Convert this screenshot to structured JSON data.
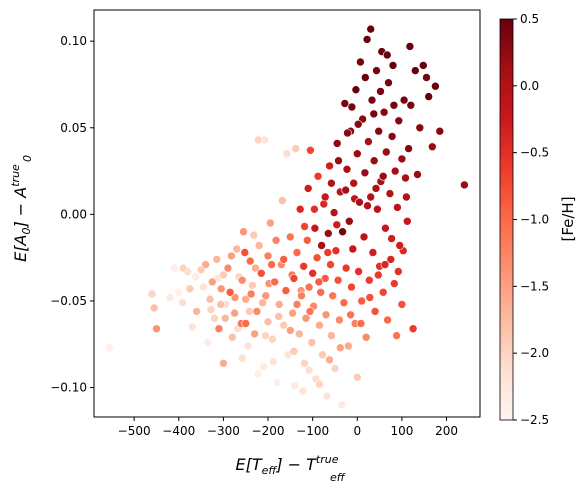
{
  "chart_data": {
    "type": "scatter",
    "xlabel_base": "E[T",
    "xlabel_sub": "eff",
    "xlabel_mid": "] − T",
    "xlabel_sup": "true",
    "ylabel_base": "E[A",
    "ylabel_sub": "0",
    "ylabel_mid": "] − A",
    "ylabel_sup": "true",
    "xlim": [
      -590,
      275
    ],
    "ylim": [
      -0.117,
      0.118
    ],
    "xticks": [
      -500,
      -400,
      -300,
      -200,
      -100,
      0,
      100,
      200
    ],
    "xtick_labels": [
      "−500",
      "−400",
      "−300",
      "−200",
      "−100",
      "0",
      "100",
      "200"
    ],
    "yticks": [
      -0.1,
      -0.05,
      0.0,
      0.05,
      0.1
    ],
    "ytick_labels": [
      "−0.10",
      "−0.05",
      "0.00",
      "0.05",
      "0.10"
    ],
    "grid": false,
    "marker_edge": "#ffffff",
    "colorbar": {
      "label": "[Fe/H]",
      "range": [
        -2.5,
        0.5
      ],
      "ticks": [
        -2.5,
        -2.0,
        -1.5,
        -1.0,
        -0.5,
        0.0,
        0.5
      ],
      "tick_labels": [
        "−2.5",
        "−2.0",
        "−1.5",
        "−1.0",
        "−0.5",
        "0.0",
        "0.5"
      ],
      "colormap": "Reds",
      "colors": [
        "#fff5f0",
        "#fee0d2",
        "#fcbba1",
        "#fc9272",
        "#fb6a4a",
        "#ef3b2c",
        "#cb181d",
        "#a50f15",
        "#67000d"
      ]
    },
    "points": [
      {
        "x": -555,
        "y": -0.077,
        "feh": -2.4
      },
      {
        "x": -460,
        "y": -0.046,
        "feh": -2.0
      },
      {
        "x": -455,
        "y": -0.054,
        "feh": -1.8
      },
      {
        "x": -450,
        "y": -0.066,
        "feh": -1.4
      },
      {
        "x": -420,
        "y": -0.048,
        "feh": -2.3
      },
      {
        "x": -400,
        "y": -0.045,
        "feh": -2.4
      },
      {
        "x": -390,
        "y": -0.031,
        "feh": -2.0
      },
      {
        "x": -380,
        "y": -0.033,
        "feh": -2.1
      },
      {
        "x": -370,
        "y": -0.065,
        "feh": -2.2
      },
      {
        "x": -360,
        "y": -0.056,
        "feh": -1.7
      },
      {
        "x": -350,
        "y": -0.032,
        "feh": -1.9
      },
      {
        "x": -340,
        "y": -0.029,
        "feh": -1.6
      },
      {
        "x": -335,
        "y": -0.074,
        "feh": -2.3
      },
      {
        "x": -330,
        "y": -0.049,
        "feh": -1.8
      },
      {
        "x": -325,
        "y": -0.039,
        "feh": -1.5
      },
      {
        "x": -320,
        "y": -0.06,
        "feh": -2.0
      },
      {
        "x": -315,
        "y": -0.026,
        "feh": -1.7
      },
      {
        "x": -310,
        "y": -0.066,
        "feh": -1.2
      },
      {
        "x": -305,
        "y": -0.043,
        "feh": -1.4
      },
      {
        "x": -300,
        "y": -0.035,
        "feh": -1.9
      },
      {
        "x": -300,
        "y": -0.086,
        "feh": -1.6
      },
      {
        "x": -295,
        "y": -0.052,
        "feh": -2.1
      },
      {
        "x": -290,
        "y": -0.031,
        "feh": -1.3
      },
      {
        "x": -285,
        "y": -0.045,
        "feh": -0.9
      },
      {
        "x": -280,
        "y": -0.071,
        "feh": -1.8
      },
      {
        "x": -275,
        "y": -0.057,
        "feh": -1.5
      },
      {
        "x": -270,
        "y": -0.02,
        "feh": -1.7
      },
      {
        "x": -265,
        "y": -0.036,
        "feh": -2.0
      },
      {
        "x": -260,
        "y": -0.063,
        "feh": -1.1
      },
      {
        "x": -255,
        "y": -0.01,
        "feh": -1.4
      },
      {
        "x": -250,
        "y": -0.049,
        "feh": -1.6
      },
      {
        "x": -245,
        "y": -0.076,
        "feh": -2.2
      },
      {
        "x": -240,
        "y": -0.027,
        "feh": -1.0
      },
      {
        "x": -235,
        "y": -0.041,
        "feh": -1.9
      },
      {
        "x": -230,
        "y": -0.069,
        "feh": -1.5
      },
      {
        "x": -225,
        "y": -0.056,
        "feh": -1.3
      },
      {
        "x": -222,
        "y": 0.043,
        "feh": -2.0
      },
      {
        "x": -220,
        "y": -0.018,
        "feh": -1.7
      },
      {
        "x": -215,
        "y": -0.034,
        "feh": -0.8
      },
      {
        "x": -210,
        "y": -0.088,
        "feh": -2.3
      },
      {
        "x": -208,
        "y": 0.043,
        "feh": -2.2
      },
      {
        "x": -205,
        "y": -0.047,
        "feh": -1.4
      },
      {
        "x": -200,
        "y": -0.062,
        "feh": -1.8
      },
      {
        "x": -200,
        "y": -0.024,
        "feh": -1.2
      },
      {
        "x": -195,
        "y": -0.005,
        "feh": -1.5
      },
      {
        "x": -190,
        "y": -0.072,
        "feh": -2.0
      },
      {
        "x": -185,
        "y": -0.039,
        "feh": -1.0
      },
      {
        "x": -180,
        "y": -0.097,
        "feh": -2.4
      },
      {
        "x": -175,
        "y": -0.052,
        "feh": -1.6
      },
      {
        "x": -170,
        "y": -0.029,
        "feh": -1.3
      },
      {
        "x": -168,
        "y": 0.008,
        "feh": -1.8
      },
      {
        "x": -165,
        "y": -0.064,
        "feh": -1.9
      },
      {
        "x": -160,
        "y": -0.044,
        "feh": -0.9
      },
      {
        "x": -158,
        "y": 0.035,
        "feh": -2.1
      },
      {
        "x": -155,
        "y": -0.081,
        "feh": -2.2
      },
      {
        "x": -150,
        "y": -0.013,
        "feh": -1.1
      },
      {
        "x": -145,
        "y": -0.057,
        "feh": -1.5
      },
      {
        "x": -142,
        "y": -0.037,
        "feh": -0.7
      },
      {
        "x": -140,
        "y": -0.099,
        "feh": -2.3
      },
      {
        "x": -138,
        "y": 0.038,
        "feh": -1.9
      },
      {
        "x": -135,
        "y": -0.022,
        "feh": -1.0
      },
      {
        "x": -130,
        "y": -0.069,
        "feh": -1.7
      },
      {
        "x": -128,
        "y": 0.003,
        "feh": -0.4
      },
      {
        "x": -125,
        "y": -0.047,
        "feh": -1.2
      },
      {
        "x": -122,
        "y": -0.102,
        "feh": -2.2
      },
      {
        "x": -120,
        "y": -0.03,
        "feh": -0.6
      },
      {
        "x": -118,
        "y": -0.086,
        "feh": -2.0
      },
      {
        "x": -115,
        "y": -0.06,
        "feh": -1.4
      },
      {
        "x": -112,
        "y": -0.015,
        "feh": -0.9
      },
      {
        "x": -110,
        "y": 0.015,
        "feh": -0.3
      },
      {
        "x": -108,
        "y": -0.042,
        "feh": -1.1
      },
      {
        "x": -105,
        "y": 0.037,
        "feh": -0.7
      },
      {
        "x": -102,
        "y": -0.074,
        "feh": -1.8
      },
      {
        "x": -100,
        "y": -0.034,
        "feh": -0.5
      },
      {
        "x": -98,
        "y": -0.053,
        "feh": -1.3
      },
      {
        "x": -95,
        "y": -0.008,
        "feh": -0.2
      },
      {
        "x": -93,
        "y": -0.095,
        "feh": -2.1
      },
      {
        "x": -90,
        "y": -0.025,
        "feh": -0.8
      },
      {
        "x": -88,
        "y": 0.022,
        "feh": -0.6
      },
      {
        "x": -85,
        "y": -0.064,
        "feh": -1.6
      },
      {
        "x": -82,
        "y": -0.045,
        "feh": -1.0
      },
      {
        "x": -80,
        "y": -0.018,
        "feh": 0.1
      },
      {
        "x": -78,
        "y": -0.081,
        "feh": -1.9
      },
      {
        "x": -75,
        "y": 0.006,
        "feh": -0.4
      },
      {
        "x": -72,
        "y": -0.037,
        "feh": -0.9
      },
      {
        "x": -70,
        "y": -0.058,
        "feh": -1.4
      },
      {
        "x": -68,
        "y": -0.105,
        "feh": -2.2
      },
      {
        "x": -65,
        "y": -0.011,
        "feh": 0.2
      },
      {
        "x": -62,
        "y": 0.028,
        "feh": -0.3
      },
      {
        "x": -60,
        "y": -0.029,
        "feh": -0.7
      },
      {
        "x": -58,
        "y": -0.07,
        "feh": -1.7
      },
      {
        "x": -55,
        "y": -0.047,
        "feh": -1.1
      },
      {
        "x": -52,
        "y": 0.001,
        "feh": 0.0
      },
      {
        "x": -50,
        "y": -0.089,
        "feh": -2.0
      },
      {
        "x": -48,
        "y": -0.021,
        "feh": -0.5
      },
      {
        "x": -45,
        "y": 0.041,
        "feh": 0.3
      },
      {
        "x": -43,
        "y": -0.038,
        "feh": -0.8
      },
      {
        "x": -40,
        "y": -0.061,
        "feh": -1.3
      },
      {
        "x": -38,
        "y": 0.013,
        "feh": -0.1
      },
      {
        "x": -35,
        "y": -0.11,
        "feh": -2.3
      },
      {
        "x": -33,
        "y": -0.01,
        "feh": 0.4
      },
      {
        "x": -30,
        "y": -0.051,
        "feh": -1.0
      },
      {
        "x": -28,
        "y": 0.064,
        "feh": 0.4
      },
      {
        "x": -25,
        "y": -0.031,
        "feh": -0.6
      },
      {
        "x": -23,
        "y": 0.026,
        "feh": 0.1
      },
      {
        "x": -20,
        "y": -0.076,
        "feh": -1.6
      },
      {
        "x": -18,
        "y": -0.004,
        "feh": 0.2
      },
      {
        "x": -15,
        "y": 0.048,
        "feh": 0.3
      },
      {
        "x": -13,
        "y": -0.042,
        "feh": -0.7
      },
      {
        "x": -10,
        "y": -0.02,
        "feh": -0.2
      },
      {
        "x": -8,
        "y": 0.018,
        "feh": 0.0
      },
      {
        "x": -5,
        "y": -0.063,
        "feh": -1.2
      },
      {
        "x": -3,
        "y": 0.072,
        "feh": 0.5
      },
      {
        "x": 0,
        "y": -0.094,
        "feh": -1.9
      },
      {
        "x": 0,
        "y": 0.035,
        "feh": 0.2
      },
      {
        "x": 3,
        "y": -0.033,
        "feh": -0.5
      },
      {
        "x": 5,
        "y": 0.007,
        "feh": 0.1
      },
      {
        "x": 7,
        "y": 0.088,
        "feh": 0.4
      },
      {
        "x": 10,
        "y": -0.05,
        "feh": -0.9
      },
      {
        "x": 12,
        "y": 0.055,
        "feh": 0.3
      },
      {
        "x": 15,
        "y": -0.013,
        "feh": -0.1
      },
      {
        "x": 17,
        "y": 0.024,
        "feh": 0.2
      },
      {
        "x": 20,
        "y": -0.071,
        "feh": -1.3
      },
      {
        "x": 22,
        "y": 0.101,
        "feh": 0.5
      },
      {
        "x": 25,
        "y": 0.042,
        "feh": 0.1
      },
      {
        "x": 27,
        "y": -0.038,
        "feh": -0.6
      },
      {
        "x": 30,
        "y": 0.01,
        "feh": 0.0
      },
      {
        "x": 30,
        "y": 0.107,
        "feh": 0.5
      },
      {
        "x": 33,
        "y": 0.066,
        "feh": 0.4
      },
      {
        "x": 35,
        "y": -0.022,
        "feh": -0.3
      },
      {
        "x": 38,
        "y": 0.031,
        "feh": 0.2
      },
      {
        "x": 40,
        "y": -0.056,
        "feh": -0.8
      },
      {
        "x": 43,
        "y": 0.083,
        "feh": 0.4
      },
      {
        "x": 45,
        "y": 0.003,
        "feh": -0.1
      },
      {
        "x": 48,
        "y": 0.048,
        "feh": 0.3
      },
      {
        "x": 50,
        "y": -0.03,
        "feh": -0.5
      },
      {
        "x": 53,
        "y": 0.019,
        "feh": 0.1
      },
      {
        "x": 55,
        "y": 0.094,
        "feh": 0.5
      },
      {
        "x": 58,
        "y": -0.045,
        "feh": -0.7
      },
      {
        "x": 60,
        "y": 0.059,
        "feh": 0.3
      },
      {
        "x": 63,
        "y": -0.008,
        "feh": -0.2
      },
      {
        "x": 65,
        "y": 0.036,
        "feh": 0.2
      },
      {
        "x": 68,
        "y": -0.061,
        "feh": -1.0
      },
      {
        "x": 70,
        "y": 0.076,
        "feh": 0.4
      },
      {
        "x": 73,
        "y": 0.012,
        "feh": 0.0
      },
      {
        "x": 75,
        "y": -0.026,
        "feh": -0.4
      },
      {
        "x": 78,
        "y": 0.045,
        "feh": 0.3
      },
      {
        "x": 80,
        "y": 0.086,
        "feh": 0.5
      },
      {
        "x": 83,
        "y": -0.04,
        "feh": -0.6
      },
      {
        "x": 85,
        "y": 0.025,
        "feh": 0.1
      },
      {
        "x": 88,
        "y": -0.07,
        "feh": -1.1
      },
      {
        "x": 90,
        "y": 0.004,
        "feh": -0.1
      },
      {
        "x": 93,
        "y": 0.054,
        "feh": 0.3
      },
      {
        "x": 95,
        "y": -0.018,
        "feh": -0.3
      },
      {
        "x": 100,
        "y": 0.032,
        "feh": 0.2
      },
      {
        "x": 100,
        "y": -0.052,
        "feh": -0.8
      },
      {
        "x": 105,
        "y": 0.066,
        "feh": 0.4
      },
      {
        "x": 110,
        "y": 0.01,
        "feh": 0.0
      },
      {
        "x": 115,
        "y": 0.038,
        "feh": 0.3
      },
      {
        "x": 120,
        "y": 0.063,
        "feh": 0.4
      },
      {
        "x": 125,
        "y": -0.066,
        "feh": -0.6
      },
      {
        "x": 130,
        "y": 0.083,
        "feh": 0.5
      },
      {
        "x": 135,
        "y": 0.023,
        "feh": 0.2
      },
      {
        "x": 140,
        "y": 0.05,
        "feh": 0.3
      },
      {
        "x": 148,
        "y": 0.086,
        "feh": 0.5
      },
      {
        "x": 155,
        "y": 0.079,
        "feh": 0.4
      },
      {
        "x": 160,
        "y": 0.068,
        "feh": 0.5
      },
      {
        "x": 168,
        "y": 0.039,
        "feh": 0.2
      },
      {
        "x": 175,
        "y": 0.074,
        "feh": 0.5
      },
      {
        "x": 185,
        "y": 0.048,
        "feh": 0.3
      },
      {
        "x": 240,
        "y": 0.017,
        "feh": 0.2
      },
      {
        "x": 118,
        "y": 0.097,
        "feh": 0.5
      },
      {
        "x": 108,
        "y": 0.021,
        "feh": 0.1
      },
      {
        "x": 112,
        "y": -0.004,
        "feh": -0.2
      },
      {
        "x": 82,
        "y": 0.063,
        "feh": 0.4
      },
      {
        "x": 67,
        "y": 0.092,
        "feh": 0.5
      },
      {
        "x": 52,
        "y": 0.071,
        "feh": 0.4
      },
      {
        "x": 37,
        "y": 0.058,
        "feh": 0.4
      },
      {
        "x": 18,
        "y": 0.079,
        "feh": 0.5
      },
      {
        "x": 2,
        "y": 0.052,
        "feh": 0.3
      },
      {
        "x": -12,
        "y": 0.062,
        "feh": 0.4
      },
      {
        "x": -22,
        "y": 0.047,
        "feh": 0.3
      },
      {
        "x": -42,
        "y": 0.031,
        "feh": 0.2
      },
      {
        "x": -58,
        "y": 0.018,
        "feh": 0.0
      },
      {
        "x": -72,
        "y": 0.01,
        "feh": -0.2
      },
      {
        "x": -96,
        "y": 0.003,
        "feh": -0.5
      },
      {
        "x": -118,
        "y": -0.007,
        "feh": -0.7
      },
      {
        "x": -135,
        "y": -0.052,
        "feh": -1.2
      },
      {
        "x": -150,
        "y": -0.067,
        "feh": -1.5
      },
      {
        "x": -165,
        "y": -0.026,
        "feh": -0.9
      },
      {
        "x": -182,
        "y": -0.015,
        "feh": -1.2
      },
      {
        "x": -198,
        "y": -0.04,
        "feh": -1.4
      },
      {
        "x": -212,
        "y": -0.051,
        "feh": -1.7
      },
      {
        "x": -228,
        "y": -0.031,
        "feh": -1.6
      },
      {
        "x": -242,
        "y": -0.056,
        "feh": -1.9
      },
      {
        "x": -258,
        "y": -0.038,
        "feh": -1.3
      },
      {
        "x": -268,
        "y": -0.066,
        "feh": -2.1
      },
      {
        "x": -282,
        "y": -0.024,
        "feh": -1.5
      },
      {
        "x": -296,
        "y": -0.06,
        "feh": -1.7
      },
      {
        "x": -312,
        "y": -0.037,
        "feh": -2.2
      },
      {
        "x": -328,
        "y": -0.055,
        "feh": -2.0
      },
      {
        "x": -345,
        "y": -0.042,
        "feh": -2.2
      },
      {
        "x": -362,
        "y": -0.036,
        "feh": -2.3
      },
      {
        "x": -375,
        "y": -0.043,
        "feh": -1.9
      },
      {
        "x": -392,
        "y": -0.051,
        "feh": -2.1
      },
      {
        "x": -410,
        "y": -0.031,
        "feh": -2.4
      },
      {
        "x": -258,
        "y": -0.083,
        "feh": -2.1
      },
      {
        "x": -222,
        "y": -0.092,
        "feh": -2.4
      },
      {
        "x": -188,
        "y": -0.085,
        "feh": -2.2
      },
      {
        "x": -142,
        "y": -0.079,
        "feh": -1.9
      },
      {
        "x": -108,
        "y": -0.09,
        "feh": -2.1
      },
      {
        "x": -85,
        "y": -0.098,
        "feh": -2.0
      },
      {
        "x": -62,
        "y": -0.084,
        "feh": -1.6
      },
      {
        "x": -38,
        "y": -0.077,
        "feh": -1.5
      },
      {
        "x": -15,
        "y": -0.058,
        "feh": -1.1
      },
      {
        "x": 8,
        "y": -0.063,
        "feh": -1.0
      },
      {
        "x": 28,
        "y": -0.048,
        "feh": -0.8
      },
      {
        "x": 47,
        "y": -0.035,
        "feh": -0.6
      },
      {
        "x": 62,
        "y": -0.029,
        "feh": -0.4
      },
      {
        "x": 77,
        "y": -0.014,
        "feh": -0.3
      },
      {
        "x": 92,
        "y": -0.033,
        "feh": -0.5
      },
      {
        "x": 103,
        "y": -0.021,
        "feh": -0.4
      },
      {
        "x": 58,
        "y": 0.022,
        "feh": 0.2
      },
      {
        "x": 42,
        "y": 0.015,
        "feh": 0.1
      },
      {
        "x": 23,
        "y": 0.005,
        "feh": 0.0
      },
      {
        "x": -6,
        "y": 0.009,
        "feh": -0.1
      },
      {
        "x": -26,
        "y": 0.014,
        "feh": 0.1
      },
      {
        "x": -46,
        "y": -0.006,
        "feh": -0.3
      },
      {
        "x": -66,
        "y": -0.022,
        "feh": -0.6
      },
      {
        "x": -86,
        "y": -0.039,
        "feh": -0.9
      },
      {
        "x": -106,
        "y": -0.056,
        "feh": -1.1
      },
      {
        "x": -126,
        "y": -0.044,
        "feh": -1.4
      },
      {
        "x": -146,
        "y": -0.035,
        "feh": -1.1
      },
      {
        "x": -176,
        "y": -0.059,
        "feh": -1.8
      },
      {
        "x": -192,
        "y": -0.029,
        "feh": -1.0
      },
      {
        "x": -206,
        "y": -0.07,
        "feh": -2.0
      },
      {
        "x": -238,
        "y": -0.046,
        "feh": -1.2
      },
      {
        "x": -252,
        "y": -0.022,
        "feh": -0.8
      },
      {
        "x": -274,
        "y": -0.048,
        "feh": -1.4
      },
      {
        "x": -306,
        "y": -0.052,
        "feh": -1.8
      },
      {
        "x": -250,
        "y": -0.063,
        "feh": -1.0
      },
      {
        "x": -232,
        "y": -0.012,
        "feh": -1.9
      }
    ]
  }
}
